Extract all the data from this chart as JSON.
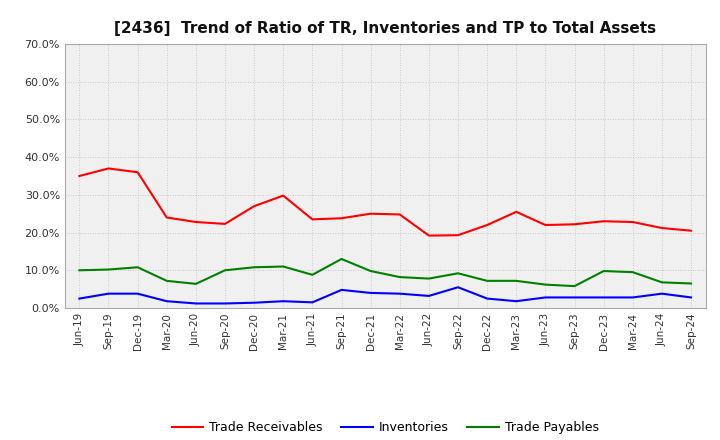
{
  "title": "[2436]  Trend of Ratio of TR, Inventories and TP to Total Assets",
  "x_labels": [
    "Jun-19",
    "Sep-19",
    "Dec-19",
    "Mar-20",
    "Jun-20",
    "Sep-20",
    "Dec-20",
    "Mar-21",
    "Jun-21",
    "Sep-21",
    "Dec-21",
    "Mar-22",
    "Jun-22",
    "Sep-22",
    "Dec-22",
    "Mar-23",
    "Jun-23",
    "Sep-23",
    "Dec-23",
    "Mar-24",
    "Jun-24",
    "Sep-24"
  ],
  "trade_receivables": [
    0.35,
    0.37,
    0.36,
    0.24,
    0.228,
    0.223,
    0.27,
    0.298,
    0.235,
    0.238,
    0.25,
    0.248,
    0.192,
    0.193,
    0.22,
    0.255,
    0.22,
    0.222,
    0.23,
    0.228,
    0.212,
    0.205
  ],
  "inventories": [
    0.025,
    0.038,
    0.038,
    0.018,
    0.012,
    0.012,
    0.014,
    0.018,
    0.015,
    0.048,
    0.04,
    0.038,
    0.032,
    0.055,
    0.025,
    0.018,
    0.028,
    0.028,
    0.028,
    0.028,
    0.038,
    0.028
  ],
  "trade_payables": [
    0.1,
    0.102,
    0.108,
    0.072,
    0.064,
    0.1,
    0.108,
    0.11,
    0.088,
    0.13,
    0.098,
    0.082,
    0.078,
    0.092,
    0.072,
    0.072,
    0.062,
    0.058,
    0.098,
    0.095,
    0.068,
    0.065
  ],
  "line_colors": {
    "trade_receivables": "#FF0000",
    "inventories": "#0000FF",
    "trade_payables": "#008000"
  },
  "ylim": [
    0.0,
    0.7
  ],
  "yticks": [
    0.0,
    0.1,
    0.2,
    0.3,
    0.4,
    0.5,
    0.6,
    0.7
  ],
  "background_color": "#FFFFFF",
  "plot_bg_color": "#F0F0F0",
  "grid_color": "#BBBBBB",
  "legend_labels": [
    "Trade Receivables",
    "Inventories",
    "Trade Payables"
  ]
}
